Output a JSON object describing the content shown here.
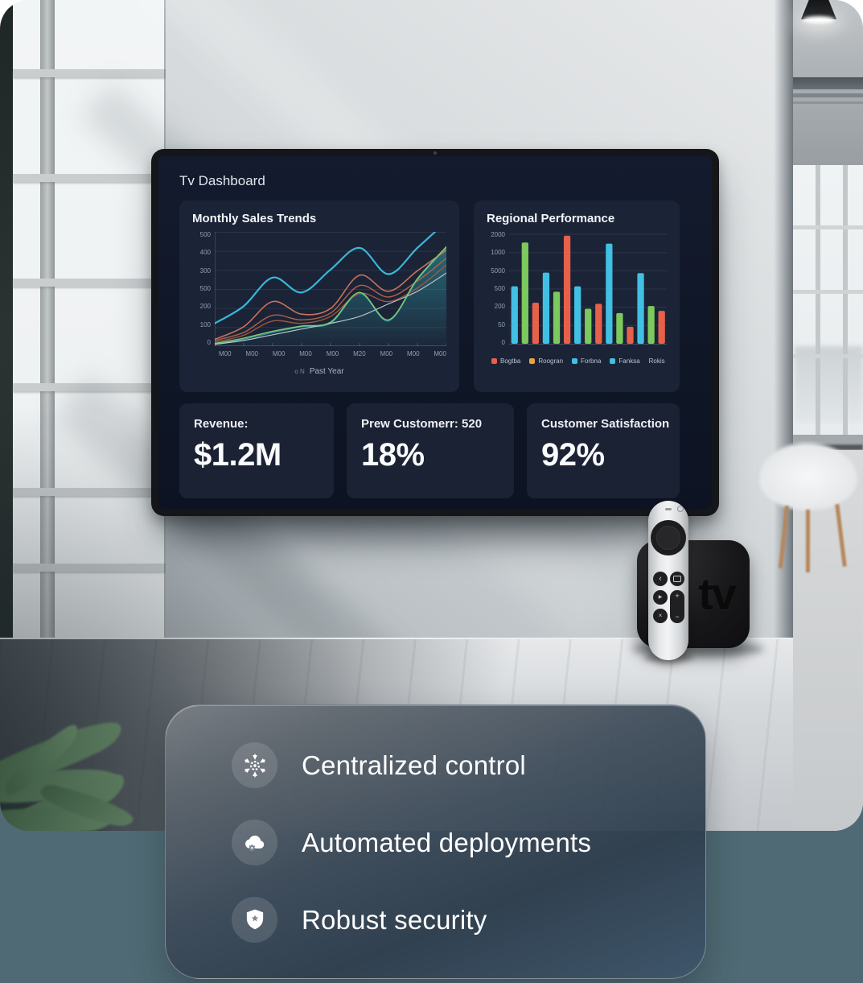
{
  "dashboard": {
    "title": "Tv Dashboard",
    "stats": [
      {
        "label": "Revenue:",
        "value": "$1.2M"
      },
      {
        "label": "Prew Customerr: 520",
        "value": "18%"
      },
      {
        "label": "Customer Satisfaction",
        "value": "92%"
      }
    ]
  },
  "chart_data": [
    {
      "type": "line",
      "title": "Monthly Sales Trends",
      "x_labels": [
        "M00",
        "M00",
        "M00",
        "M00",
        "M00",
        "M20",
        "M00",
        "M00",
        "M00"
      ],
      "y_labels": [
        "500",
        "400",
        "300",
        "500",
        "200",
        "100",
        "0"
      ],
      "ylim": [
        0,
        500
      ],
      "grid": true,
      "legend_position": "none",
      "caption_prefix": "o N",
      "caption": "Past Year",
      "series": [
        {
          "name": "area-fill",
          "color": "#2fa3ad",
          "width": 1,
          "fill": true,
          "values": [
            10,
            30,
            60,
            85,
            100,
            230,
            110,
            290,
            430
          ]
        },
        {
          "name": "gray-line",
          "color": "#b8c1ca",
          "width": 1.2,
          "values": [
            8,
            25,
            50,
            75,
            100,
            130,
            185,
            240,
            320
          ]
        },
        {
          "name": "orange-line-3",
          "color": "#9d5843",
          "width": 1.4,
          "values": [
            18,
            48,
            110,
            100,
            130,
            230,
            195,
            255,
            355
          ]
        },
        {
          "name": "orange-line-2",
          "color": "#b2614b",
          "width": 1.4,
          "values": [
            25,
            60,
            135,
            115,
            145,
            265,
            215,
            285,
            385
          ]
        },
        {
          "name": "orange-line-1",
          "color": "#c7735c",
          "width": 1.6,
          "values": [
            30,
            85,
            195,
            140,
            165,
            310,
            240,
            330,
            420
          ]
        },
        {
          "name": "green-line",
          "color": "#80ca73",
          "width": 1.5,
          "values": [
            12,
            35,
            65,
            88,
            105,
            235,
            115,
            295,
            435
          ]
        },
        {
          "name": "cyan-line",
          "color": "#39b8d8",
          "width": 2.2,
          "values": [
            100,
            175,
            300,
            235,
            335,
            430,
            315,
            430,
            545
          ]
        }
      ]
    },
    {
      "type": "bar",
      "title": "Regional Performance",
      "y_labels": [
        "2000",
        "1000",
        "5000",
        "500",
        "200",
        "50",
        "0"
      ],
      "ylim": [
        0,
        2000
      ],
      "grid": true,
      "bar_colors": [
        "#41c0e4",
        "#7cc95e",
        "#e7604a"
      ],
      "values": [
        1050,
        1850,
        750,
        1300,
        950,
        1975,
        1050,
        640,
        730,
        1830,
        560,
        310,
        1290,
        690,
        600
      ],
      "legend": [
        {
          "color": "#e7604a",
          "label": "Bogtba"
        },
        {
          "color": "#e8a33d",
          "label": "Roogran"
        },
        {
          "color": "#41c0e4",
          "label": "Forbna"
        },
        {
          "color": "#41c0e4",
          "label": "Fanksa"
        },
        {
          "color": "",
          "label": "Rokis"
        }
      ]
    }
  ],
  "device": {
    "box_logo": "tv",
    "remote": {
      "back": "‹",
      "play": "▶",
      "mute": "×",
      "volume_up": "+",
      "volume_down": "−"
    }
  },
  "features": [
    {
      "icon": "centralized-control-icon",
      "label": "Centralized control"
    },
    {
      "icon": "cloud-deployments-icon",
      "label": "Automated deployments"
    },
    {
      "icon": "shield-security-icon",
      "label": "Robust security"
    }
  ],
  "colors": {
    "accent_cyan": "#41c0e4",
    "accent_green": "#7cc95e",
    "accent_red": "#e7604a",
    "screen_bg": "#0f1626",
    "panel_bg": "#1b2336",
    "page_bottom_bg": "#4f6a74"
  }
}
